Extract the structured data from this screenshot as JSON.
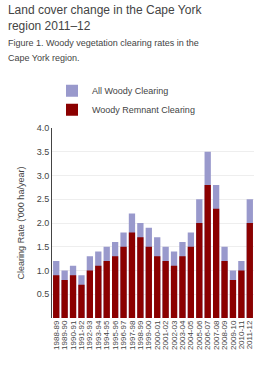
{
  "chart_data": {
    "type": "bar",
    "title": "Land cover change in the Cape York region 2011–12",
    "subtitle": "Figure 1. Woody vegetation clearing rates in the Cape York\nregion.",
    "categories": [
      "1988-89",
      "1989-90",
      "1990-91",
      "1991-92",
      "1992-93",
      "1993-94",
      "1994-95",
      "1995-96",
      "1996-97",
      "1997-98",
      "1998-99",
      "1999-00",
      "2000-01",
      "2001-02",
      "2002-03",
      "2003-04",
      "2004-05",
      "2005-06",
      "2006-07",
      "2007-08",
      "2008-09",
      "2009-10",
      "2010-11",
      "2011-12"
    ],
    "series": [
      {
        "name": "All Woody Clearing",
        "color": "#9999CC",
        "values": [
          1.2,
          1.0,
          1.1,
          0.9,
          1.3,
          1.4,
          1.5,
          1.6,
          1.8,
          2.2,
          2.0,
          1.9,
          1.7,
          1.5,
          1.4,
          1.6,
          1.8,
          2.5,
          3.5,
          2.8,
          1.5,
          1.0,
          1.2,
          2.5
        ]
      },
      {
        "name": "Woody Remnant Clearing",
        "color": "#8B0000",
        "values": [
          0.9,
          0.8,
          0.9,
          0.7,
          1.0,
          1.1,
          1.2,
          1.3,
          1.5,
          1.8,
          1.7,
          1.5,
          1.3,
          1.2,
          1.1,
          1.3,
          1.5,
          2.0,
          2.8,
          2.3,
          1.2,
          0.8,
          1.0,
          2.0
        ]
      }
    ],
    "ylabel": "Clearing Rate ('000 ha/year)",
    "ylim": [
      0,
      4.0
    ],
    "yticks": [
      0.5,
      {
        "value": 1.0,
        "label": "1.0"
      },
      1.5,
      {
        "value": 2.0,
        "label": "2.0"
      },
      2.5,
      {
        "value": 3.0,
        "label": "3.0"
      },
      3.5,
      {
        "value": 4.0,
        "label": "4.0"
      }
    ],
    "grid": true,
    "legend": "upper left",
    "stacked": false
  }
}
